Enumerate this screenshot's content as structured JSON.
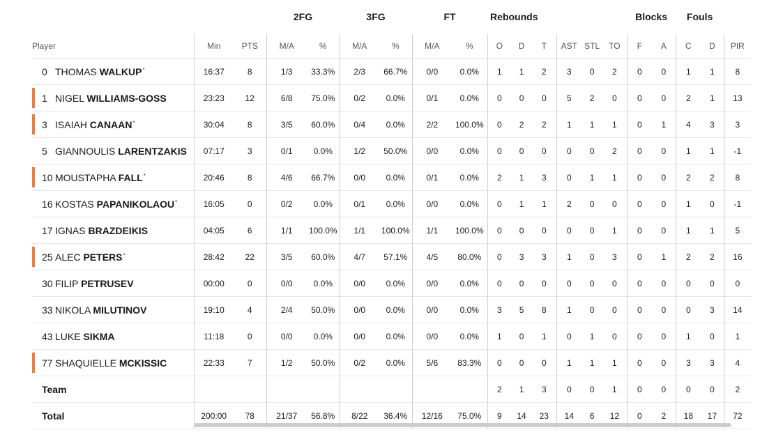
{
  "headers": {
    "groups": {
      "fg2": "2FG",
      "fg3": "3FG",
      "ft": "FT",
      "rebounds": "Rebounds",
      "blocks": "Blocks",
      "fouls": "Fouls"
    },
    "player": "Player",
    "min": "Min",
    "pts": "PTS",
    "fg2_ma": "M/A",
    "fg2_pct": "%",
    "fg3_ma": "M/A",
    "fg3_pct": "%",
    "ft_ma": "M/A",
    "ft_pct": "%",
    "reb_o": "O",
    "reb_d": "D",
    "reb_t": "T",
    "ast": "AST",
    "stl": "STL",
    "to": "TO",
    "blk_f": "F",
    "blk_a": "A",
    "foul_c": "C",
    "foul_d": "D",
    "pir": "PIR"
  },
  "players": [
    {
      "num": "0",
      "first": "THOMAS",
      "last": "WALKUP",
      "mark": "*",
      "starter": false,
      "min": "16:37",
      "pts": "8",
      "fg2_ma": "1/3",
      "fg2_pct": "33.3%",
      "fg3_ma": "2/3",
      "fg3_pct": "66.7%",
      "ft_ma": "0/0",
      "ft_pct": "0.0%",
      "reb_o": "1",
      "reb_d": "1",
      "reb_t": "2",
      "ast": "3",
      "stl": "0",
      "to": "2",
      "blk_f": "0",
      "blk_a": "0",
      "foul_c": "1",
      "foul_d": "1",
      "pir": "8"
    },
    {
      "num": "1",
      "first": "NIGEL",
      "last": "WILLIAMS-GOSS",
      "mark": "",
      "starter": true,
      "min": "23:23",
      "pts": "12",
      "fg2_ma": "6/8",
      "fg2_pct": "75.0%",
      "fg3_ma": "0/2",
      "fg3_pct": "0.0%",
      "ft_ma": "0/1",
      "ft_pct": "0.0%",
      "reb_o": "0",
      "reb_d": "0",
      "reb_t": "0",
      "ast": "5",
      "stl": "2",
      "to": "0",
      "blk_f": "0",
      "blk_a": "0",
      "foul_c": "2",
      "foul_d": "1",
      "pir": "13"
    },
    {
      "num": "3",
      "first": "ISAIAH",
      "last": "CANAAN",
      "mark": "*",
      "starter": true,
      "min": "30:04",
      "pts": "8",
      "fg2_ma": "3/5",
      "fg2_pct": "60.0%",
      "fg3_ma": "0/4",
      "fg3_pct": "0.0%",
      "ft_ma": "2/2",
      "ft_pct": "100.0%",
      "reb_o": "0",
      "reb_d": "2",
      "reb_t": "2",
      "ast": "1",
      "stl": "1",
      "to": "1",
      "blk_f": "0",
      "blk_a": "1",
      "foul_c": "4",
      "foul_d": "3",
      "pir": "3"
    },
    {
      "num": "5",
      "first": "GIANNOULIS",
      "last": "LARENTZAKIS",
      "mark": "",
      "starter": false,
      "min": "07:17",
      "pts": "3",
      "fg2_ma": "0/1",
      "fg2_pct": "0.0%",
      "fg3_ma": "1/2",
      "fg3_pct": "50.0%",
      "ft_ma": "0/0",
      "ft_pct": "0.0%",
      "reb_o": "0",
      "reb_d": "0",
      "reb_t": "0",
      "ast": "0",
      "stl": "0",
      "to": "2",
      "blk_f": "0",
      "blk_a": "0",
      "foul_c": "1",
      "foul_d": "1",
      "pir": "-1"
    },
    {
      "num": "10",
      "first": "MOUSTAPHA",
      "last": "FALL",
      "mark": "*",
      "starter": true,
      "min": "20:46",
      "pts": "8",
      "fg2_ma": "4/6",
      "fg2_pct": "66.7%",
      "fg3_ma": "0/0",
      "fg3_pct": "0.0%",
      "ft_ma": "0/1",
      "ft_pct": "0.0%",
      "reb_o": "2",
      "reb_d": "1",
      "reb_t": "3",
      "ast": "0",
      "stl": "1",
      "to": "1",
      "blk_f": "0",
      "blk_a": "0",
      "foul_c": "2",
      "foul_d": "2",
      "pir": "8"
    },
    {
      "num": "16",
      "first": "KOSTAS",
      "last": "PAPANIKOLAOU",
      "mark": "*",
      "starter": false,
      "min": "16:05",
      "pts": "0",
      "fg2_ma": "0/2",
      "fg2_pct": "0.0%",
      "fg3_ma": "0/1",
      "fg3_pct": "0.0%",
      "ft_ma": "0/0",
      "ft_pct": "0.0%",
      "reb_o": "0",
      "reb_d": "1",
      "reb_t": "1",
      "ast": "2",
      "stl": "0",
      "to": "0",
      "blk_f": "0",
      "blk_a": "0",
      "foul_c": "1",
      "foul_d": "0",
      "pir": "-1"
    },
    {
      "num": "17",
      "first": "IGNAS",
      "last": "BRAZDEIKIS",
      "mark": "",
      "starter": false,
      "min": "04:05",
      "pts": "6",
      "fg2_ma": "1/1",
      "fg2_pct": "100.0%",
      "fg3_ma": "1/1",
      "fg3_pct": "100.0%",
      "ft_ma": "1/1",
      "ft_pct": "100.0%",
      "reb_o": "0",
      "reb_d": "0",
      "reb_t": "0",
      "ast": "0",
      "stl": "0",
      "to": "1",
      "blk_f": "0",
      "blk_a": "0",
      "foul_c": "1",
      "foul_d": "1",
      "pir": "5"
    },
    {
      "num": "25",
      "first": "ALEC",
      "last": "PETERS",
      "mark": "*",
      "starter": true,
      "min": "28:42",
      "pts": "22",
      "fg2_ma": "3/5",
      "fg2_pct": "60.0%",
      "fg3_ma": "4/7",
      "fg3_pct": "57.1%",
      "ft_ma": "4/5",
      "ft_pct": "80.0%",
      "reb_o": "0",
      "reb_d": "3",
      "reb_t": "3",
      "ast": "1",
      "stl": "0",
      "to": "3",
      "blk_f": "0",
      "blk_a": "1",
      "foul_c": "2",
      "foul_d": "2",
      "pir": "16"
    },
    {
      "num": "30",
      "first": "FILIP",
      "last": "PETRUSEV",
      "mark": "",
      "starter": false,
      "min": "00:00",
      "pts": "0",
      "fg2_ma": "0/0",
      "fg2_pct": "0.0%",
      "fg3_ma": "0/0",
      "fg3_pct": "0.0%",
      "ft_ma": "0/0",
      "ft_pct": "0.0%",
      "reb_o": "0",
      "reb_d": "0",
      "reb_t": "0",
      "ast": "0",
      "stl": "0",
      "to": "0",
      "blk_f": "0",
      "blk_a": "0",
      "foul_c": "0",
      "foul_d": "0",
      "pir": "0"
    },
    {
      "num": "33",
      "first": "NIKOLA",
      "last": "MILUTINOV",
      "mark": "",
      "starter": false,
      "min": "19:10",
      "pts": "4",
      "fg2_ma": "2/4",
      "fg2_pct": "50.0%",
      "fg3_ma": "0/0",
      "fg3_pct": "0.0%",
      "ft_ma": "0/0",
      "ft_pct": "0.0%",
      "reb_o": "3",
      "reb_d": "5",
      "reb_t": "8",
      "ast": "1",
      "stl": "0",
      "to": "0",
      "blk_f": "0",
      "blk_a": "0",
      "foul_c": "0",
      "foul_d": "3",
      "pir": "14"
    },
    {
      "num": "43",
      "first": "LUKE",
      "last": "SIKMA",
      "mark": "",
      "starter": false,
      "min": "11:18",
      "pts": "0",
      "fg2_ma": "0/0",
      "fg2_pct": "0.0%",
      "fg3_ma": "0/0",
      "fg3_pct": "0.0%",
      "ft_ma": "0/0",
      "ft_pct": "0.0%",
      "reb_o": "1",
      "reb_d": "0",
      "reb_t": "1",
      "ast": "0",
      "stl": "1",
      "to": "0",
      "blk_f": "0",
      "blk_a": "0",
      "foul_c": "1",
      "foul_d": "0",
      "pir": "1"
    },
    {
      "num": "77",
      "first": "SHAQUIELLE",
      "last": "MCKISSIC",
      "mark": "",
      "starter": true,
      "min": "22:33",
      "pts": "7",
      "fg2_ma": "1/2",
      "fg2_pct": "50.0%",
      "fg3_ma": "0/2",
      "fg3_pct": "0.0%",
      "ft_ma": "5/6",
      "ft_pct": "83.3%",
      "reb_o": "0",
      "reb_d": "0",
      "reb_t": "0",
      "ast": "1",
      "stl": "1",
      "to": "1",
      "blk_f": "0",
      "blk_a": "0",
      "foul_c": "3",
      "foul_d": "3",
      "pir": "4"
    }
  ],
  "team": {
    "label": "Team",
    "min": "",
    "pts": "",
    "fg2_ma": "",
    "fg2_pct": "",
    "fg3_ma": "",
    "fg3_pct": "",
    "ft_ma": "",
    "ft_pct": "",
    "reb_o": "2",
    "reb_d": "1",
    "reb_t": "3",
    "ast": "0",
    "stl": "0",
    "to": "1",
    "blk_f": "0",
    "blk_a": "0",
    "foul_c": "0",
    "foul_d": "0",
    "pir": "2"
  },
  "total": {
    "label": "Total",
    "min": "200:00",
    "pts": "78",
    "fg2_ma": "21/37",
    "fg2_pct": "56.8%",
    "fg3_ma": "8/22",
    "fg3_pct": "36.4%",
    "ft_ma": "12/16",
    "ft_pct": "75.0%",
    "reb_o": "9",
    "reb_d": "14",
    "reb_t": "23",
    "ast": "14",
    "stl": "6",
    "to": "12",
    "blk_f": "0",
    "blk_a": "2",
    "foul_c": "18",
    "foul_d": "17",
    "pir": "72"
  },
  "colors": {
    "starter_marker": "#f47a3a",
    "divider": "#cfcfcf",
    "row_border": "#e6e6e6",
    "scrollbar": "#cdcdcd"
  }
}
